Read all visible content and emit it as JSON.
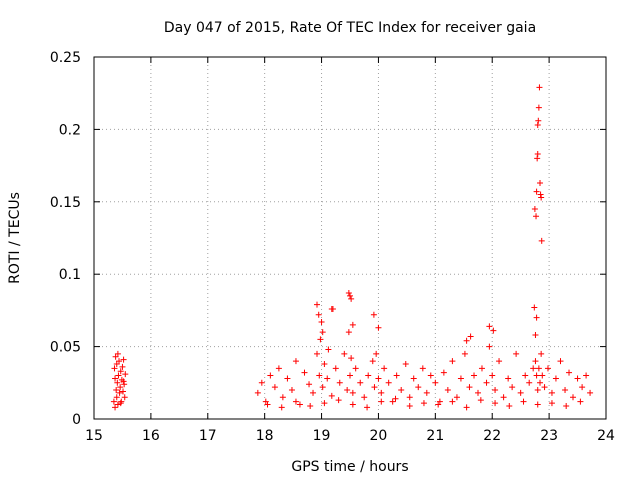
{
  "chart_data": {
    "type": "scatter",
    "title": "Day 047 of 2015, Rate Of TEC Index for receiver gaia",
    "xlabel": "GPS time / hours",
    "ylabel": "ROTI / TECUs",
    "xlim": [
      15,
      24
    ],
    "ylim": [
      0,
      0.25
    ],
    "x_ticks": [
      15,
      16,
      17,
      18,
      19,
      20,
      21,
      22,
      23,
      24
    ],
    "x_tick_labels": [
      "15",
      "16",
      "17",
      "18",
      "19",
      "20",
      "21",
      "22",
      "23",
      "24"
    ],
    "y_ticks": [
      0,
      0.05,
      0.1,
      0.15,
      0.2,
      0.25
    ],
    "y_tick_labels": [
      "0",
      "0.05",
      "0.1",
      "0.15",
      "0.2",
      "0.25"
    ],
    "grid": true,
    "marker": "+",
    "series": [
      {
        "name": "ROTI",
        "color": "#ff0000",
        "x": [
          15.35,
          15.36,
          15.37,
          15.38,
          15.39,
          15.4,
          15.4,
          15.41,
          15.42,
          15.43,
          15.44,
          15.45,
          15.46,
          15.47,
          15.48,
          15.49,
          15.5,
          15.51,
          15.52,
          15.53,
          15.54,
          15.55,
          15.37,
          15.42,
          15.47,
          15.52,
          17.88,
          17.95,
          18.02,
          18.1,
          18.18,
          18.25,
          18.32,
          18.4,
          18.48,
          18.55,
          18.62,
          18.7,
          18.78,
          18.85,
          18.92,
          18.96,
          18.98,
          19.02,
          19.05,
          19.1,
          19.12,
          19.18,
          19.25,
          19.32,
          19.4,
          19.45,
          19.48,
          19.5,
          19.52,
          19.55,
          19.6,
          19.68,
          19.75,
          19.82,
          19.9,
          19.93,
          19.96,
          20.0,
          20.05,
          20.1,
          20.18,
          20.25,
          20.32,
          20.4,
          20.48,
          20.55,
          20.62,
          20.7,
          20.78,
          20.85,
          20.92,
          21.0,
          21.08,
          21.15,
          21.22,
          21.3,
          21.38,
          21.45,
          21.52,
          21.6,
          21.68,
          21.75,
          21.82,
          21.9,
          21.95,
          22.0,
          22.05,
          22.12,
          22.2,
          22.28,
          22.35,
          22.42,
          22.5,
          22.58,
          22.65,
          22.72,
          22.76,
          22.78,
          22.8,
          22.82,
          22.84,
          22.86,
          22.88,
          22.92,
          22.98,
          23.05,
          23.12,
          23.2,
          23.28,
          23.35,
          23.42,
          23.5,
          23.58,
          23.65,
          23.72,
          18.05,
          18.3,
          18.55,
          18.8,
          19.05,
          19.3,
          19.55,
          19.8,
          20.05,
          20.3,
          20.55,
          20.8,
          21.05,
          21.3,
          21.55,
          21.8,
          22.05,
          22.3,
          22.55,
          22.8,
          23.05,
          23.3,
          23.55,
          22.74,
          22.75,
          22.77,
          22.78,
          22.79,
          22.8,
          22.8,
          22.81,
          22.82,
          22.83,
          22.84,
          22.85,
          22.86,
          22.87,
          22.76,
          22.78,
          18.92,
          18.95,
          19.0,
          19.02,
          19.18,
          19.2,
          19.48,
          19.5,
          19.52,
          19.55,
          19.92,
          20.0,
          21.55,
          21.62,
          21.95,
          22.02
        ],
        "y": [
          0.012,
          0.035,
          0.028,
          0.043,
          0.02,
          0.015,
          0.038,
          0.025,
          0.01,
          0.03,
          0.04,
          0.018,
          0.022,
          0.033,
          0.012,
          0.027,
          0.036,
          0.019,
          0.041,
          0.024,
          0.015,
          0.031,
          0.008,
          0.045,
          0.011,
          0.026,
          0.018,
          0.025,
          0.012,
          0.03,
          0.022,
          0.035,
          0.015,
          0.028,
          0.02,
          0.04,
          0.01,
          0.032,
          0.024,
          0.018,
          0.045,
          0.03,
          0.055,
          0.022,
          0.038,
          0.028,
          0.048,
          0.016,
          0.035,
          0.025,
          0.045,
          0.02,
          0.06,
          0.03,
          0.042,
          0.018,
          0.035,
          0.025,
          0.015,
          0.03,
          0.04,
          0.022,
          0.045,
          0.028,
          0.018,
          0.035,
          0.025,
          0.012,
          0.03,
          0.02,
          0.038,
          0.015,
          0.028,
          0.022,
          0.035,
          0.018,
          0.03,
          0.025,
          0.012,
          0.032,
          0.02,
          0.04,
          0.015,
          0.028,
          0.045,
          0.022,
          0.03,
          0.018,
          0.035,
          0.025,
          0.05,
          0.03,
          0.02,
          0.04,
          0.015,
          0.028,
          0.022,
          0.045,
          0.018,
          0.03,
          0.025,
          0.035,
          0.04,
          0.03,
          0.02,
          0.035,
          0.025,
          0.045,
          0.03,
          0.022,
          0.035,
          0.018,
          0.028,
          0.04,
          0.02,
          0.032,
          0.015,
          0.028,
          0.022,
          0.03,
          0.018,
          0.01,
          0.008,
          0.012,
          0.009,
          0.011,
          0.013,
          0.01,
          0.008,
          0.012,
          0.014,
          0.009,
          0.011,
          0.01,
          0.012,
          0.008,
          0.013,
          0.011,
          0.009,
          0.012,
          0.01,
          0.011,
          0.009,
          0.012,
          0.077,
          0.145,
          0.14,
          0.157,
          0.18,
          0.183,
          0.203,
          0.206,
          0.215,
          0.229,
          0.163,
          0.155,
          0.153,
          0.123,
          0.058,
          0.07,
          0.079,
          0.072,
          0.067,
          0.06,
          0.076,
          0.076,
          0.087,
          0.085,
          0.083,
          0.065,
          0.072,
          0.063,
          0.054,
          0.057,
          0.064,
          0.061
        ]
      }
    ]
  }
}
